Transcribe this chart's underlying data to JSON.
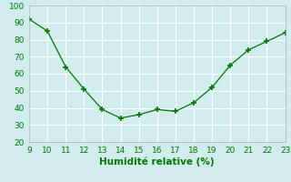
{
  "x": [
    9,
    10,
    11,
    12,
    13,
    14,
    15,
    16,
    17,
    18,
    19,
    20,
    21,
    22,
    23
  ],
  "y": [
    92,
    85,
    64,
    51,
    39,
    34,
    36,
    39,
    38,
    43,
    52,
    65,
    74,
    79,
    84
  ],
  "xlabel": "Humidité relative (%)",
  "ylim": [
    20,
    100
  ],
  "xlim": [
    9,
    23
  ],
  "yticks": [
    20,
    30,
    40,
    50,
    60,
    70,
    80,
    90,
    100
  ],
  "xticks": [
    9,
    10,
    11,
    12,
    13,
    14,
    15,
    16,
    17,
    18,
    19,
    20,
    21,
    22,
    23
  ],
  "line_color": "#007700",
  "marker_color": "#007700",
  "bg_color": "#d0ecec",
  "grid_color": "#ffffff",
  "tick_color": "#007700",
  "label_color": "#007700",
  "tick_fontsize": 6.5,
  "xlabel_fontsize": 7.5
}
